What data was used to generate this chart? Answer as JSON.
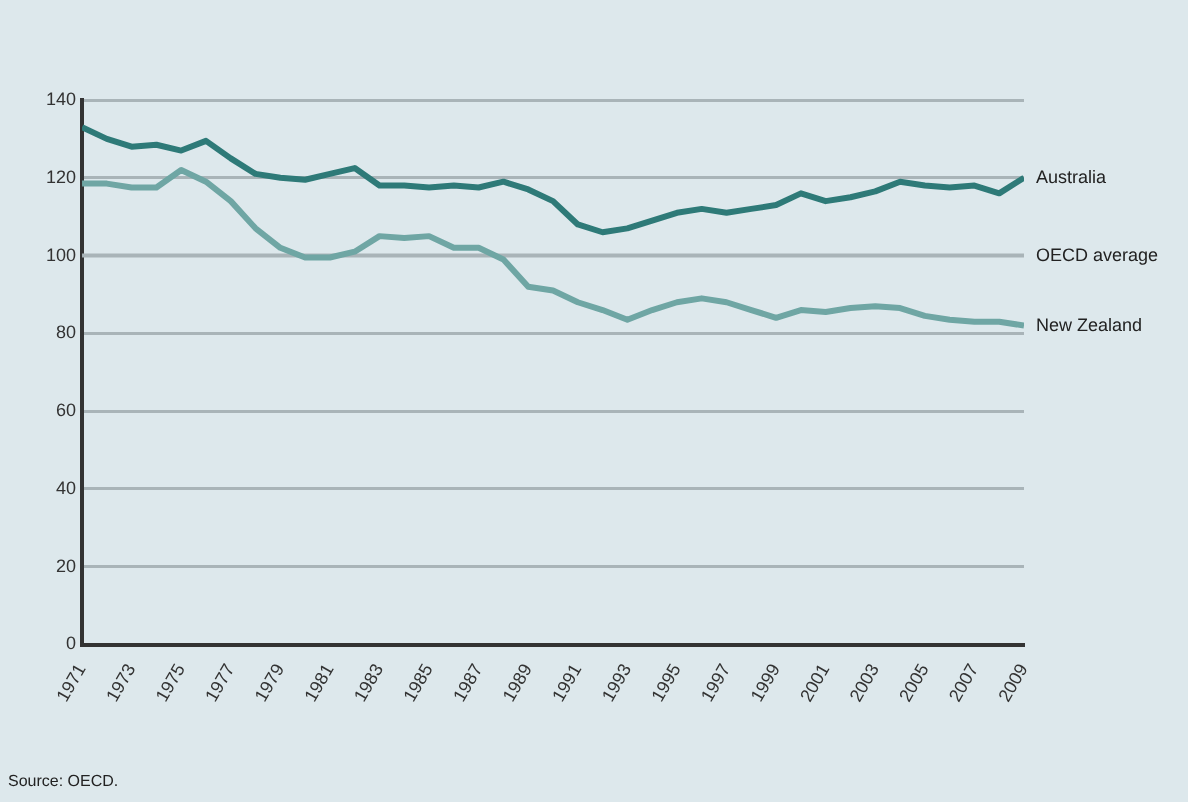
{
  "chart_data": {
    "type": "line",
    "x": [
      1971,
      1972,
      1973,
      1974,
      1975,
      1976,
      1977,
      1978,
      1979,
      1980,
      1981,
      1982,
      1983,
      1984,
      1985,
      1986,
      1987,
      1988,
      1989,
      1990,
      1991,
      1992,
      1993,
      1994,
      1995,
      1996,
      1997,
      1998,
      1999,
      2000,
      2001,
      2002,
      2003,
      2004,
      2005,
      2006,
      2007,
      2008,
      2009
    ],
    "series": [
      {
        "name": "Australia",
        "color": "#2e7a78",
        "values": [
          133,
          130,
          128,
          128.5,
          127,
          129.5,
          125,
          121,
          120,
          119.5,
          121,
          122.5,
          118,
          118,
          117.5,
          118,
          117.5,
          119,
          117,
          114,
          108,
          106,
          107,
          109,
          111,
          112,
          111,
          112,
          113,
          116,
          114,
          115,
          116.5,
          119,
          118,
          117.5,
          118,
          116,
          120
        ]
      },
      {
        "name": "New Zealand",
        "color": "#6fa6a4",
        "values": [
          118.5,
          118.5,
          117.5,
          117.5,
          122,
          119,
          114,
          107,
          102,
          99.5,
          99.5,
          101,
          105,
          104.5,
          105,
          102,
          102,
          99,
          92,
          91,
          88,
          86,
          83.5,
          86,
          88,
          89,
          88,
          86,
          84,
          86,
          85.5,
          86.5,
          87,
          86.5,
          84.5,
          83.5,
          83,
          83,
          82
        ]
      }
    ],
    "xlim": [
      1971,
      2009
    ],
    "xticks": [
      1971,
      1973,
      1975,
      1977,
      1979,
      1981,
      1983,
      1985,
      1987,
      1989,
      1991,
      1993,
      1995,
      1997,
      1999,
      2001,
      2003,
      2005,
      2007,
      2009
    ],
    "ylim": [
      0,
      140
    ],
    "yticks": [
      0,
      20,
      40,
      60,
      80,
      100,
      120,
      140
    ],
    "grid": "y",
    "legend": false,
    "marker": "none",
    "line_style": "solid",
    "ref_lines": [
      {
        "axis": "y",
        "value": 100,
        "label": "OECD average",
        "color": "#a9b4b8"
      }
    ],
    "annotations": [
      "Source: OECD."
    ]
  }
}
